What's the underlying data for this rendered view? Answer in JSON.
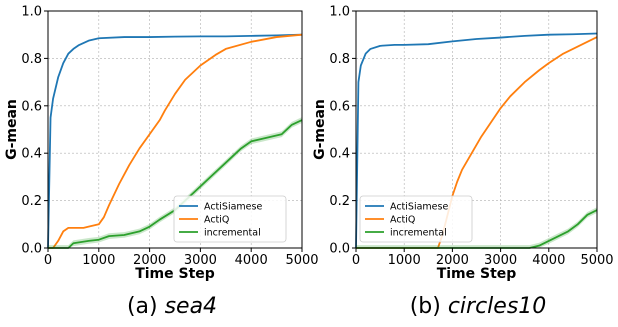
{
  "chart_data": [
    {
      "type": "line",
      "caption_prefix": "(a) ",
      "caption_name": "sea4",
      "xlabel": "Time Step",
      "ylabel": "G-mean",
      "xlim": [
        0,
        5000
      ],
      "ylim": [
        0,
        1.0
      ],
      "xticks": [
        "0",
        "1000",
        "2000",
        "3000",
        "4000",
        "5000"
      ],
      "yticks": [
        "0.0",
        "0.2",
        "0.4",
        "0.6",
        "0.8",
        "1.0"
      ],
      "grid": true,
      "legend_position": "lower-right",
      "series": [
        {
          "name": "ActiSiamese",
          "color": "#1f77b4",
          "x": [
            0,
            50,
            100,
            200,
            300,
            400,
            500,
            600,
            800,
            1000,
            1500,
            2000,
            2500,
            3000,
            3500,
            4000,
            4500,
            5000
          ],
          "y": [
            0.0,
            0.55,
            0.63,
            0.72,
            0.78,
            0.82,
            0.84,
            0.855,
            0.875,
            0.885,
            0.89,
            0.89,
            0.892,
            0.893,
            0.893,
            0.895,
            0.897,
            0.9
          ]
        },
        {
          "name": "ActiQ",
          "color": "#ff7f0e",
          "x": [
            0,
            100,
            200,
            300,
            400,
            500,
            700,
            800,
            1000,
            1100,
            1200,
            1400,
            1600,
            1800,
            2000,
            2200,
            2300,
            2500,
            2700,
            3000,
            3300,
            3500,
            4000,
            4500,
            5000
          ],
          "y": [
            0.0,
            0.0,
            0.03,
            0.07,
            0.085,
            0.085,
            0.085,
            0.09,
            0.1,
            0.13,
            0.18,
            0.27,
            0.35,
            0.42,
            0.48,
            0.54,
            0.58,
            0.65,
            0.71,
            0.77,
            0.815,
            0.84,
            0.87,
            0.89,
            0.9
          ]
        },
        {
          "name": "incremental",
          "color": "#2ca02c",
          "x": [
            0,
            400,
            500,
            800,
            1000,
            1200,
            1500,
            1800,
            2000,
            2200,
            2500,
            2800,
            3000,
            3200,
            3500,
            3800,
            4000,
            4200,
            4400,
            4600,
            4800,
            5000
          ],
          "y": [
            0.0,
            0.0,
            0.02,
            0.03,
            0.035,
            0.05,
            0.055,
            0.07,
            0.09,
            0.12,
            0.16,
            0.22,
            0.26,
            0.3,
            0.36,
            0.42,
            0.45,
            0.46,
            0.47,
            0.48,
            0.52,
            0.54
          ]
        }
      ]
    },
    {
      "type": "line",
      "caption_prefix": "(b) ",
      "caption_name": "circles10",
      "xlabel": "Time Step",
      "ylabel": "G-mean",
      "xlim": [
        0,
        5000
      ],
      "ylim": [
        0,
        1.0
      ],
      "xticks": [
        "0",
        "1000",
        "2000",
        "3000",
        "4000",
        "5000"
      ],
      "yticks": [
        "0.0",
        "0.2",
        "0.4",
        "0.6",
        "0.8",
        "1.0"
      ],
      "grid": true,
      "legend_position": "lower-left",
      "series": [
        {
          "name": "ActiSiamese",
          "color": "#1f77b4",
          "x": [
            0,
            50,
            100,
            200,
            300,
            500,
            800,
            1000,
            1500,
            2000,
            2500,
            3000,
            3500,
            4000,
            4500,
            5000
          ],
          "y": [
            0.0,
            0.7,
            0.77,
            0.82,
            0.84,
            0.853,
            0.857,
            0.857,
            0.86,
            0.872,
            0.882,
            0.888,
            0.895,
            0.9,
            0.902,
            0.905
          ]
        },
        {
          "name": "ActiQ",
          "color": "#ff7f0e",
          "x": [
            0,
            1700,
            1800,
            1900,
            2000,
            2100,
            2200,
            2400,
            2600,
            2800,
            3000,
            3200,
            3500,
            3800,
            4000,
            4300,
            4600,
            5000
          ],
          "y": [
            0.0,
            0.0,
            0.06,
            0.14,
            0.22,
            0.28,
            0.33,
            0.4,
            0.47,
            0.53,
            0.59,
            0.64,
            0.7,
            0.75,
            0.78,
            0.82,
            0.85,
            0.89
          ]
        },
        {
          "name": "incremental",
          "color": "#2ca02c",
          "x": [
            0,
            3600,
            3800,
            4000,
            4200,
            4400,
            4600,
            4800,
            5000
          ],
          "y": [
            0.0,
            0.0,
            0.01,
            0.03,
            0.05,
            0.07,
            0.1,
            0.14,
            0.16
          ]
        }
      ]
    }
  ]
}
